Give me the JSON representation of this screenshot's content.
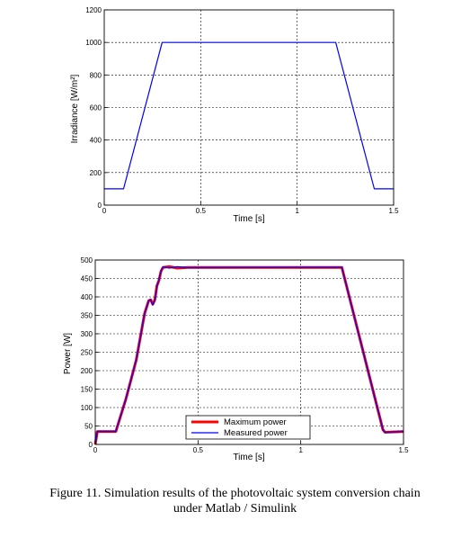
{
  "chart_data": [
    {
      "type": "line",
      "title": "",
      "xlabel": "Time [s]",
      "ylabel": "Irradiance [W/m²]",
      "xlim": [
        0,
        1.5
      ],
      "ylim": [
        0,
        1200
      ],
      "xticks": [
        "0",
        "0.5",
        "1",
        "1.5"
      ],
      "yticks": [
        "0",
        "200",
        "400",
        "600",
        "800",
        "1000",
        "1200"
      ],
      "grid": true,
      "series": [
        {
          "color": "#0000ff",
          "x": [
            0,
            0.1,
            0.3,
            1.2,
            1.4,
            1.5
          ],
          "y": [
            100,
            100,
            1000,
            1000,
            100,
            100
          ]
        }
      ]
    },
    {
      "type": "line",
      "title": "",
      "xlabel": "Time [s]",
      "ylabel": "Power [W]",
      "xlim": [
        0,
        1.5
      ],
      "ylim": [
        0,
        500
      ],
      "xticks": [
        "0",
        "0.5",
        "1",
        "1.5"
      ],
      "yticks": [
        "0",
        "50",
        "100",
        "150",
        "200",
        "250",
        "300",
        "350",
        "400",
        "450",
        "500"
      ],
      "grid": true,
      "legend_position": "bottom-center",
      "series": [
        {
          "name": "Maximum power",
          "color": "#ff0000",
          "x": [
            0,
            0.01,
            0.1,
            0.15,
            0.2,
            0.24,
            0.26,
            0.27,
            0.28,
            0.29,
            0.3,
            0.31,
            0.32,
            0.33,
            0.36,
            0.4,
            0.45,
            1.2,
            1.4,
            1.41,
            1.5
          ],
          "y": [
            0,
            35,
            35,
            125,
            230,
            355,
            390,
            392,
            380,
            392,
            430,
            445,
            470,
            480,
            482,
            478,
            480,
            480,
            40,
            33,
            35
          ]
        },
        {
          "name": "Measured power",
          "color": "#0000ff",
          "x": [
            0,
            0.01,
            0.1,
            0.15,
            0.2,
            0.24,
            0.26,
            0.27,
            0.28,
            0.29,
            0.3,
            0.31,
            0.32,
            0.33,
            0.36,
            0.4,
            0.45,
            1.2,
            1.4,
            1.41,
            1.5
          ],
          "y": [
            0,
            35,
            35,
            125,
            230,
            355,
            390,
            392,
            378,
            390,
            428,
            447,
            470,
            482,
            478,
            482,
            479,
            480,
            40,
            33,
            35
          ]
        }
      ]
    }
  ],
  "caption": {
    "line1": "Figure 11.  Simulation results of the photovoltaic system conversion chain",
    "line2": "under Matlab / Simulink"
  }
}
